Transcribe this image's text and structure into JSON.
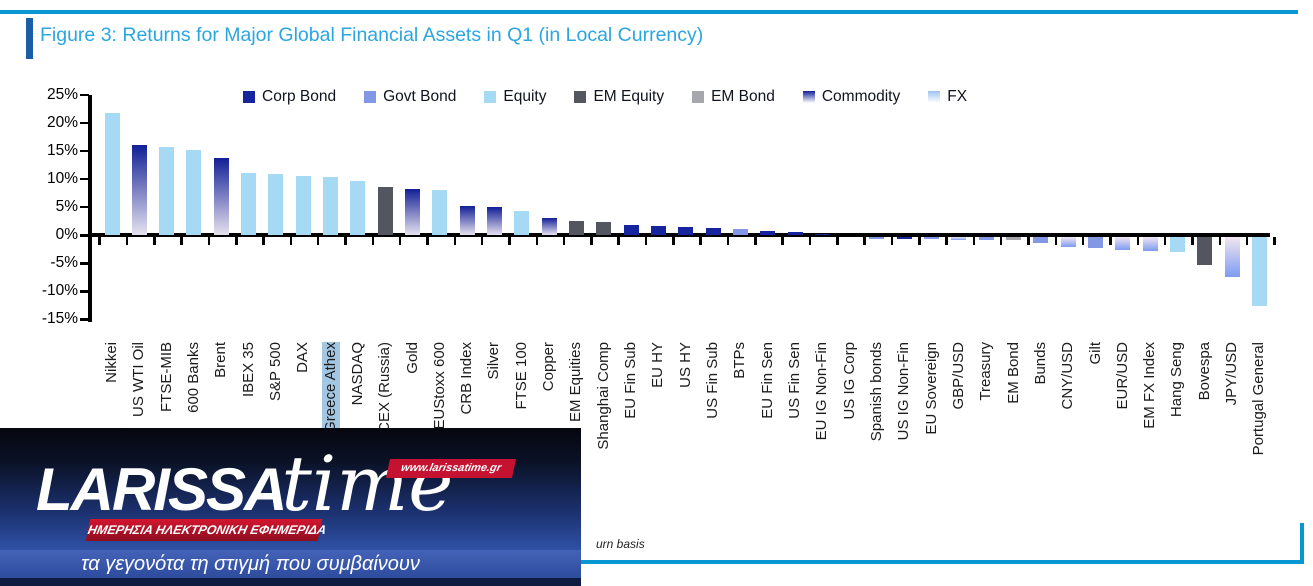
{
  "figure": {
    "title": "Figure 3: Returns for Major Global Financial Assets in Q1 (in Local Currency)",
    "footnote_fragment": "urn basis"
  },
  "legend": [
    {
      "label": "Corp Bond",
      "type": "corp_bond"
    },
    {
      "label": "Govt Bond",
      "type": "govt_bond"
    },
    {
      "label": "Equity",
      "type": "equity"
    },
    {
      "label": "EM Equity",
      "type": "em_equity"
    },
    {
      "label": "EM Bond",
      "type": "em_bond"
    },
    {
      "label": "Commodity",
      "type": "commodity"
    },
    {
      "label": "FX",
      "type": "fx"
    }
  ],
  "colors": {
    "corp_bond": "#16259E",
    "govt_bond": "#8298E4",
    "equity": "#A6D9F4",
    "em_equity": "#53565E",
    "em_bond": "#A5A7AD",
    "commodity_top": "#121F96",
    "commodity_bottom": "#E6E2EF",
    "fx_top": "#F2E6F0",
    "fx_bottom": "#7D9BF2",
    "fx_swatch_top": "#9FC3EE",
    "frame_accent": "#0997D3",
    "title_text": "#2BA6E0",
    "highlight_label_bg": "#A3C7E2",
    "axis": "#000000"
  },
  "chart_data": {
    "type": "bar",
    "title": "Figure 3: Returns for Major Global Financial Assets in Q1 (in Local Currency)",
    "xlabel": "",
    "ylabel": "",
    "unit": "%",
    "ylim": [
      -15,
      25
    ],
    "y_ticks": [
      25,
      20,
      15,
      10,
      5,
      0,
      -5,
      -10,
      -15
    ],
    "y_tick_suffix": "%",
    "grid": false,
    "legend_position": "top",
    "highlighted_category": "Greece Athex",
    "categories": [
      "Nikkei",
      "US WTI Oil",
      "FTSE-MIB",
      "600 Banks",
      "Brent",
      "IBEX 35",
      "S&P 500",
      "DAX",
      "Greece Athex",
      "NASDAQ",
      "MICEX (Russia)",
      "Gold",
      "EUStoxx 600",
      "CRB Index",
      "Silver",
      "FTSE 100",
      "Copper",
      "EM Equities",
      "Shanghai Comp",
      "EU Fin Sub",
      "EU HY",
      "US HY",
      "US Fin Sub",
      "BTPs",
      "EU Fin Sen",
      "US Fin Sen",
      "EU IG Non-Fin",
      "US IG Corp",
      "Spanish bonds",
      "US IG Non-Fin",
      "EU Sovereign",
      "GBP/USD",
      "Treasury",
      "EM Bond",
      "Bunds",
      "CNY/USD",
      "Gilt",
      "EUR/USD",
      "EM FX Index",
      "Hang Seng",
      "Bovespa",
      "JPY/USD",
      "Portugal General"
    ],
    "values": [
      21.7,
      16.1,
      15.6,
      15.1,
      13.7,
      11.0,
      10.8,
      10.5,
      10.3,
      9.6,
      8.6,
      8.2,
      8.0,
      5.1,
      5.0,
      4.2,
      3.0,
      2.5,
      2.3,
      1.7,
      1.6,
      1.4,
      1.3,
      1.0,
      0.7,
      0.5,
      0.1,
      0.0,
      -0.3,
      -0.3,
      -0.4,
      -0.5,
      -0.6,
      -0.6,
      -1.0,
      -1.8,
      -1.9,
      -2.3,
      -2.5,
      -2.7,
      -4.9,
      -7.2,
      -12.2
    ],
    "groups": [
      "equity",
      "commodity",
      "equity",
      "equity",
      "commodity",
      "equity",
      "equity",
      "equity",
      "equity",
      "equity",
      "em_equity",
      "commodity",
      "equity",
      "commodity",
      "commodity",
      "equity",
      "commodity",
      "em_equity",
      "em_equity",
      "corp_bond",
      "corp_bond",
      "corp_bond",
      "corp_bond",
      "govt_bond",
      "corp_bond",
      "corp_bond",
      "corp_bond",
      "corp_bond",
      "govt_bond",
      "corp_bond",
      "govt_bond",
      "fx",
      "govt_bond",
      "em_bond",
      "govt_bond",
      "fx",
      "govt_bond",
      "fx",
      "fx",
      "equity",
      "em_equity",
      "fx",
      "equity"
    ]
  },
  "watermark": {
    "brand": "LARISSA",
    "brand_suffix": "time",
    "url": "www.larissatime.gr",
    "banner": "ΗΜΕΡΗΣΙΑ ΗΛΕΚΤΡΟΝΙΚΗ ΕΦΗΜΕΡΙΔΑ",
    "tagline": "τα γεγονότα τη στιγμή που συμβαίνουν"
  }
}
